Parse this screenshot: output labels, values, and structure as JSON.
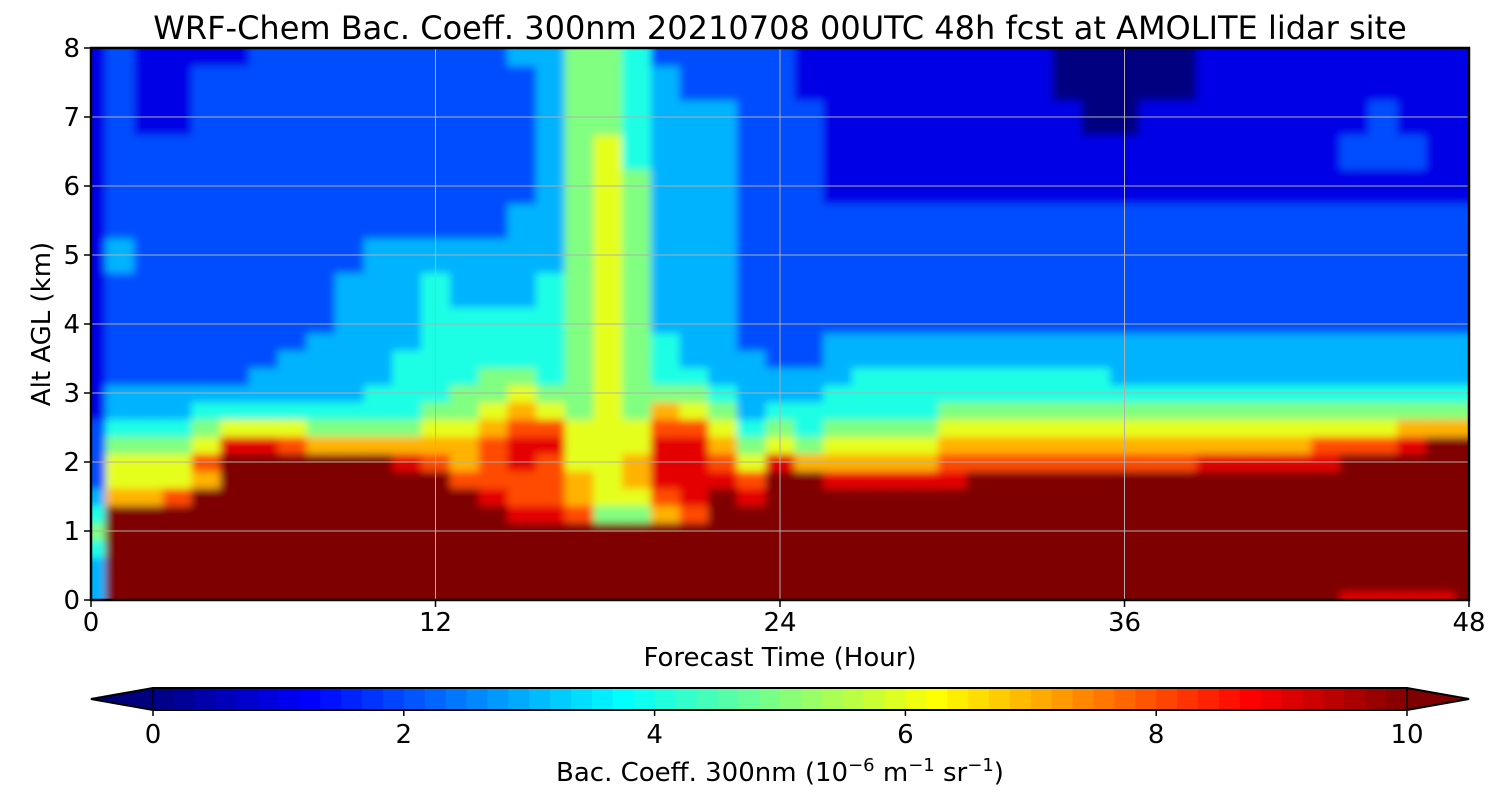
{
  "chart_data": {
    "type": "heatmap",
    "title": "WRF-Chem Bac. Coeff. 300nm  20210708 00UTC 48h fcst at AMOLITE lidar site",
    "xlabel": "Forecast Time (Hour)",
    "ylabel": "Alt AGL (km)",
    "xlim": [
      0,
      48
    ],
    "ylim": [
      0,
      8
    ],
    "xticks": [
      0,
      12,
      24,
      36,
      48
    ],
    "yticks": [
      0,
      1,
      2,
      3,
      4,
      5,
      6,
      7,
      8
    ],
    "grid": true,
    "colormap": "jet",
    "colorbar": {
      "label_main": "Bac. Coeff. 300nm  (10",
      "label_exp1": "−6",
      "label_mid": " m",
      "label_exp2": "−1",
      "label_mid2": " sr",
      "label_exp3": "−1",
      "label_end": ")",
      "range": [
        0,
        10
      ],
      "ticks": [
        0,
        2,
        4,
        6,
        8,
        10
      ],
      "extend": "both",
      "under_color": "#00007f",
      "over_color": "#7f0000"
    },
    "x": [
      0,
      1,
      2,
      3,
      4,
      5,
      6,
      7,
      8,
      9,
      10,
      11,
      12,
      13,
      14,
      15,
      16,
      17,
      18,
      19,
      20,
      21,
      22,
      23,
      24,
      25,
      26,
      27,
      28,
      29,
      30,
      31,
      32,
      33,
      34,
      35,
      36,
      37,
      38,
      39,
      40,
      41,
      42,
      43,
      44,
      45,
      46,
      47,
      48
    ],
    "y": [
      0,
      0.25,
      0.5,
      0.75,
      1.0,
      1.25,
      1.5,
      1.75,
      2.0,
      2.25,
      2.5,
      2.75,
      3.0,
      3.25,
      3.5,
      3.75,
      4.0,
      4.5,
      5.0,
      5.5,
      6.0,
      6.5,
      7.0,
      7.5,
      8.0
    ],
    "values": [
      [
        3,
        11,
        11,
        11,
        11,
        11,
        11,
        11,
        11,
        11,
        11,
        11,
        11,
        11,
        11,
        11,
        11,
        11,
        11,
        11,
        11,
        11,
        11,
        11,
        11,
        11,
        11,
        11,
        11,
        11,
        11,
        11,
        11,
        11,
        11,
        11,
        11,
        11,
        11,
        11,
        11,
        11,
        11,
        11,
        9,
        9,
        9,
        9,
        10
      ],
      [
        3,
        10,
        11,
        11,
        11,
        11,
        11,
        11,
        11,
        11,
        11,
        11,
        11,
        11,
        11,
        11,
        11,
        11,
        11,
        11,
        11,
        11,
        11,
        11,
        11,
        11,
        11,
        11,
        11,
        11,
        11,
        11,
        11,
        11,
        11,
        11,
        11,
        11,
        11,
        11,
        11,
        11,
        11,
        11,
        11,
        11,
        11,
        11,
        11
      ],
      [
        3,
        11,
        11,
        11,
        11,
        11,
        11,
        11,
        11,
        11,
        11,
        11,
        11,
        11,
        11,
        11,
        11,
        11,
        11,
        11,
        11,
        11,
        11,
        11,
        11,
        11,
        11,
        11,
        11,
        11,
        11,
        11,
        11,
        11,
        11,
        11,
        11,
        11,
        11,
        11,
        11,
        11,
        11,
        11,
        11,
        11,
        11,
        11,
        11
      ],
      [
        4,
        11,
        11,
        11,
        11,
        11,
        11,
        11,
        11,
        11,
        11,
        11,
        11,
        11,
        11,
        11,
        11,
        11,
        11,
        11,
        11,
        11,
        11,
        11,
        11,
        11,
        11,
        11,
        11,
        11,
        11,
        11,
        11,
        11,
        11,
        11,
        11,
        11,
        11,
        11,
        11,
        11,
        11,
        11,
        11,
        11,
        11,
        11,
        11
      ],
      [
        5,
        11,
        11,
        11,
        11,
        11,
        11,
        11,
        11,
        11,
        11,
        11,
        11,
        11,
        11,
        11,
        11,
        11,
        10,
        10,
        11,
        11,
        11,
        11,
        11,
        11,
        11,
        11,
        11,
        11,
        11,
        11,
        11,
        11,
        11,
        11,
        11,
        11,
        11,
        11,
        11,
        11,
        11,
        11,
        11,
        11,
        11,
        11,
        11
      ],
      [
        4,
        11,
        11,
        11,
        11,
        11,
        11,
        11,
        11,
        11,
        11,
        11,
        11,
        11,
        11,
        9,
        9,
        8,
        5,
        5,
        7,
        8,
        11,
        11,
        11,
        11,
        11,
        11,
        11,
        11,
        11,
        11,
        11,
        11,
        11,
        11,
        11,
        11,
        11,
        11,
        11,
        11,
        11,
        11,
        11,
        11,
        11,
        11,
        11
      ],
      [
        3,
        7,
        7,
        8,
        11,
        11,
        11,
        11,
        11,
        11,
        11,
        11,
        11,
        11,
        9,
        8,
        8,
        7,
        6,
        6,
        8,
        9,
        10,
        9,
        11,
        11,
        11,
        11,
        11,
        11,
        11,
        11,
        11,
        11,
        11,
        11,
        11,
        11,
        11,
        11,
        11,
        11,
        11,
        11,
        11,
        11,
        11,
        11,
        11
      ],
      [
        2,
        6,
        6,
        6,
        7,
        11,
        11,
        11,
        11,
        11,
        11,
        11,
        11,
        8,
        8,
        8,
        8,
        7,
        6,
        7,
        9,
        9,
        9,
        8,
        11,
        10,
        9,
        9,
        9,
        9,
        9,
        10,
        10,
        10,
        10,
        10,
        11,
        11,
        11,
        11,
        11,
        11,
        11,
        11,
        11,
        11,
        11,
        11,
        11
      ],
      [
        2,
        6,
        6,
        6,
        8,
        10,
        10,
        10,
        11,
        11,
        10,
        9,
        8,
        7,
        8,
        9,
        8,
        6,
        6,
        7,
        9,
        9,
        8,
        6,
        9,
        7,
        7,
        7,
        7,
        7,
        8,
        8,
        8,
        8,
        8,
        8,
        8,
        8,
        8,
        9,
        9,
        9,
        9,
        9,
        10,
        10,
        10,
        10,
        10
      ],
      [
        2,
        5,
        5,
        5,
        6,
        9,
        9,
        8,
        7,
        7,
        7,
        7,
        7,
        7,
        8,
        9,
        9,
        6,
        6,
        6,
        9,
        9,
        7,
        5,
        6,
        5,
        6,
        6,
        6,
        6,
        7,
        7,
        7,
        7,
        7,
        7,
        7,
        7,
        7,
        7,
        7,
        7,
        7,
        8,
        8,
        8,
        9,
        10,
        10
      ],
      [
        2,
        4,
        4,
        4,
        5,
        6,
        6,
        6,
        5,
        5,
        5,
        5,
        6,
        6,
        7,
        8,
        8,
        6,
        6,
        6,
        8,
        8,
        6,
        4,
        5,
        4,
        5,
        5,
        5,
        5,
        6,
        6,
        6,
        6,
        6,
        6,
        6,
        6,
        6,
        6,
        6,
        6,
        6,
        6,
        6,
        6,
        7,
        7,
        7
      ],
      [
        1,
        3,
        3,
        3,
        4,
        4,
        4,
        4,
        4,
        4,
        4,
        4,
        5,
        5,
        6,
        7,
        6,
        5,
        6,
        5,
        7,
        6,
        5,
        3,
        4,
        4,
        4,
        4,
        4,
        4,
        5,
        5,
        5,
        5,
        5,
        5,
        5,
        5,
        5,
        5,
        5,
        5,
        5,
        5,
        5,
        5,
        5,
        5,
        5
      ],
      [
        1,
        3,
        3,
        3,
        3,
        3,
        3,
        3,
        3,
        3,
        4,
        4,
        4,
        5,
        5,
        6,
        5,
        5,
        6,
        5,
        5,
        5,
        4,
        3,
        3,
        3,
        4,
        4,
        4,
        4,
        4,
        4,
        4,
        4,
        4,
        4,
        4,
        4,
        4,
        4,
        4,
        4,
        4,
        4,
        4,
        4,
        4,
        4,
        4
      ],
      [
        1,
        2,
        2,
        2,
        2,
        2,
        3,
        3,
        3,
        3,
        3,
        4,
        4,
        4,
        5,
        5,
        4,
        5,
        6,
        5,
        4,
        4,
        3,
        3,
        3,
        3,
        3,
        4,
        4,
        4,
        4,
        4,
        4,
        4,
        4,
        4,
        3,
        3,
        3,
        3,
        3,
        3,
        3,
        3,
        3,
        3,
        3,
        3,
        3
      ],
      [
        1,
        2,
        2,
        2,
        2,
        2,
        2,
        3,
        3,
        3,
        3,
        4,
        4,
        4,
        4,
        4,
        4,
        5,
        6,
        5,
        4,
        3,
        3,
        3,
        2,
        2,
        3,
        3,
        3,
        3,
        3,
        3,
        3,
        3,
        3,
        3,
        3,
        3,
        3,
        3,
        3,
        3,
        3,
        3,
        3,
        3,
        3,
        3,
        3
      ],
      [
        1,
        2,
        2,
        2,
        2,
        2,
        2,
        2,
        3,
        3,
        3,
        3,
        4,
        4,
        4,
        4,
        4,
        5,
        6,
        5,
        4,
        3,
        3,
        2,
        2,
        2,
        3,
        3,
        3,
        3,
        3,
        3,
        3,
        3,
        3,
        3,
        3,
        3,
        3,
        3,
        3,
        3,
        3,
        3,
        3,
        3,
        3,
        3,
        3
      ],
      [
        1,
        2,
        2,
        2,
        2,
        2,
        2,
        2,
        2,
        3,
        3,
        3,
        4,
        4,
        4,
        4,
        4,
        5,
        6,
        5,
        3,
        3,
        3,
        2,
        2,
        2,
        2,
        2,
        2,
        2,
        2,
        2,
        2,
        2,
        2,
        2,
        2,
        2,
        2,
        2,
        2,
        2,
        2,
        2,
        2,
        2,
        2,
        2,
        2
      ],
      [
        1,
        2,
        2,
        2,
        2,
        2,
        2,
        2,
        2,
        3,
        3,
        3,
        4,
        3,
        3,
        3,
        4,
        5,
        6,
        5,
        3,
        3,
        3,
        2,
        2,
        2,
        2,
        2,
        2,
        2,
        2,
        2,
        2,
        2,
        2,
        2,
        2,
        2,
        2,
        2,
        2,
        2,
        2,
        2,
        2,
        2,
        2,
        2,
        2
      ],
      [
        1,
        3,
        2,
        2,
        2,
        2,
        2,
        2,
        2,
        2,
        3,
        3,
        3,
        3,
        3,
        3,
        3,
        5,
        6,
        5,
        3,
        3,
        3,
        2,
        2,
        2,
        2,
        2,
        2,
        2,
        2,
        2,
        2,
        2,
        2,
        2,
        2,
        2,
        2,
        2,
        2,
        2,
        2,
        2,
        2,
        2,
        2,
        2,
        2
      ],
      [
        1,
        2,
        2,
        2,
        2,
        2,
        2,
        2,
        2,
        2,
        2,
        2,
        2,
        2,
        2,
        3,
        3,
        5,
        6,
        5,
        3,
        3,
        3,
        2,
        2,
        2,
        2,
        2,
        2,
        2,
        2,
        2,
        2,
        2,
        2,
        2,
        2,
        2,
        2,
        2,
        2,
        2,
        2,
        2,
        2,
        2,
        2,
        2,
        2
      ],
      [
        1,
        2,
        2,
        2,
        2,
        2,
        2,
        2,
        2,
        2,
        2,
        2,
        2,
        2,
        2,
        2,
        3,
        5,
        6,
        5,
        3,
        3,
        3,
        2,
        2,
        2,
        1,
        1,
        1,
        1,
        1,
        1,
        1,
        1,
        1,
        1,
        1,
        1,
        1,
        1,
        1,
        1,
        1,
        1,
        1,
        1,
        1,
        1,
        1
      ],
      [
        1,
        2,
        2,
        2,
        2,
        2,
        2,
        2,
        2,
        2,
        2,
        2,
        2,
        2,
        2,
        2,
        3,
        5,
        6,
        4,
        3,
        3,
        3,
        2,
        2,
        2,
        1,
        1,
        1,
        1,
        1,
        1,
        1,
        1,
        1,
        1,
        1,
        1,
        1,
        1,
        1,
        1,
        1,
        1,
        2,
        2,
        2,
        1,
        1
      ],
      [
        1,
        2,
        1,
        1,
        2,
        2,
        2,
        2,
        2,
        2,
        2,
        2,
        2,
        2,
        2,
        2,
        3,
        5,
        5,
        4,
        3,
        3,
        3,
        2,
        2,
        2,
        1,
        1,
        1,
        1,
        1,
        1,
        1,
        1,
        1,
        0,
        0,
        1,
        1,
        1,
        1,
        1,
        1,
        1,
        1,
        2,
        1,
        1,
        1
      ],
      [
        1,
        2,
        1,
        1,
        2,
        2,
        2,
        2,
        2,
        2,
        2,
        2,
        2,
        2,
        2,
        2,
        3,
        5,
        5,
        4,
        3,
        2,
        2,
        2,
        2,
        1,
        1,
        1,
        1,
        1,
        1,
        1,
        1,
        1,
        0,
        0,
        0,
        0,
        0,
        1,
        1,
        1,
        1,
        1,
        1,
        1,
        1,
        1,
        1
      ],
      [
        1,
        2,
        1,
        1,
        1,
        1,
        2,
        2,
        2,
        2,
        2,
        2,
        2,
        2,
        2,
        3,
        3,
        5,
        5,
        4,
        2,
        2,
        2,
        2,
        2,
        1,
        1,
        1,
        1,
        1,
        1,
        1,
        1,
        1,
        0,
        0,
        0,
        0,
        0,
        1,
        1,
        1,
        1,
        1,
        1,
        1,
        1,
        1,
        1
      ]
    ]
  }
}
